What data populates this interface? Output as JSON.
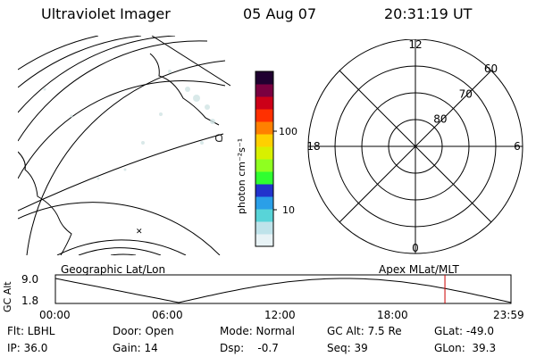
{
  "header": {
    "title": "Ultraviolet Imager",
    "date": "05 Aug 07",
    "time": "20:31:19 UT"
  },
  "colorbar": {
    "unit_label": "photon cm⁻²s⁻¹",
    "ticks": [
      {
        "label": "100",
        "value": 100
      },
      {
        "label": "10",
        "value": 10
      }
    ],
    "colors": [
      "#e8f3f6",
      "#bfe3ea",
      "#58d4d8",
      "#2a9fe8",
      "#2233cc",
      "#30ff30",
      "#8fff20",
      "#d8f000",
      "#ffd000",
      "#ff8000",
      "#ff3000",
      "#cc0018",
      "#7a0040",
      "#200030"
    ]
  },
  "geo_panel": {
    "label": "Geographic Lat/Lon"
  },
  "polar_plot": {
    "label": "Apex MLat/MLT",
    "mlt_labels": [
      {
        "label": "12",
        "mlt": 12
      },
      {
        "label": "18",
        "mlt": 18
      },
      {
        "label": "6",
        "mlt": 6
      },
      {
        "label": "0",
        "mlt": 0
      }
    ],
    "lat_labels": [
      {
        "label": "60",
        "lat": 60
      },
      {
        "label": "70",
        "lat": 70
      },
      {
        "label": "80",
        "lat": 80
      }
    ]
  },
  "altitude_strip": {
    "ylabel": "GC Alt",
    "ytick_top": "9.0",
    "ytick_bottom": "1.8",
    "xticks": [
      "00:00",
      "06:00",
      "12:00",
      "18:00",
      "23:59"
    ],
    "current_time_hours": 20.52,
    "current_marker_color": "#cc0000"
  },
  "status": {
    "flt": "Flt: LBHL",
    "door": "Door: Open",
    "mode": "Mode: Normal",
    "gc_alt": "GC Alt: 7.5 Re",
    "glat": "GLat: -49.0",
    "ip": "IP: 36.0",
    "gain": "Gain: 14",
    "dsp": "Dsp:    -0.7",
    "seq": "Seq: 39",
    "glon": "GLon:  39.3"
  }
}
